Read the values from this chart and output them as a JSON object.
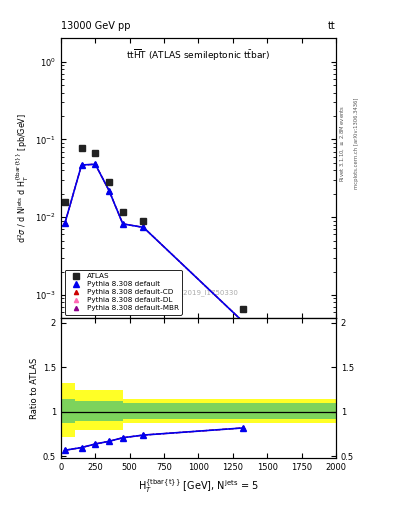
{
  "atlas_x": [
    30,
    150,
    250,
    350,
    450,
    600,
    1325
  ],
  "atlas_y": [
    0.0155,
    0.078,
    0.068,
    0.028,
    0.0115,
    0.009,
    0.00065
  ],
  "pythia_x": [
    30,
    150,
    250,
    350,
    450,
    600,
    1325
  ],
  "pythia_default_y": [
    0.0085,
    0.047,
    0.048,
    0.022,
    0.0082,
    0.0074,
    0.00045
  ],
  "ratio_x": [
    30,
    150,
    250,
    350,
    450,
    600,
    1325
  ],
  "ratio_default": [
    0.57,
    0.6,
    0.64,
    0.67,
    0.71,
    0.74,
    0.82
  ],
  "ratio_cd": [
    0.57,
    0.6,
    0.64,
    0.67,
    0.71,
    0.74,
    0.82
  ],
  "ratio_dl": [
    0.57,
    0.6,
    0.64,
    0.67,
    0.71,
    0.74,
    0.82
  ],
  "ratio_mbr": [
    0.57,
    0.6,
    0.64,
    0.67,
    0.71,
    0.74,
    0.82
  ],
  "bin_edges": [
    0,
    100,
    450,
    2000
  ],
  "yellow_lo": [
    0.72,
    0.8,
    0.88
  ],
  "yellow_hi": [
    1.32,
    1.24,
    1.14
  ],
  "green_lo": [
    0.87,
    0.9,
    0.92
  ],
  "green_hi": [
    1.15,
    1.12,
    1.1
  ],
  "color_atlas": "#222222",
  "color_default": "#0000ee",
  "color_cd": "#cc0000",
  "color_dl": "#ff69b4",
  "color_mbr": "#8b008b",
  "ylim_main": [
    0.0005,
    2.0
  ],
  "ylim_ratio": [
    0.48,
    2.05
  ],
  "xlim": [
    0,
    2000
  ]
}
